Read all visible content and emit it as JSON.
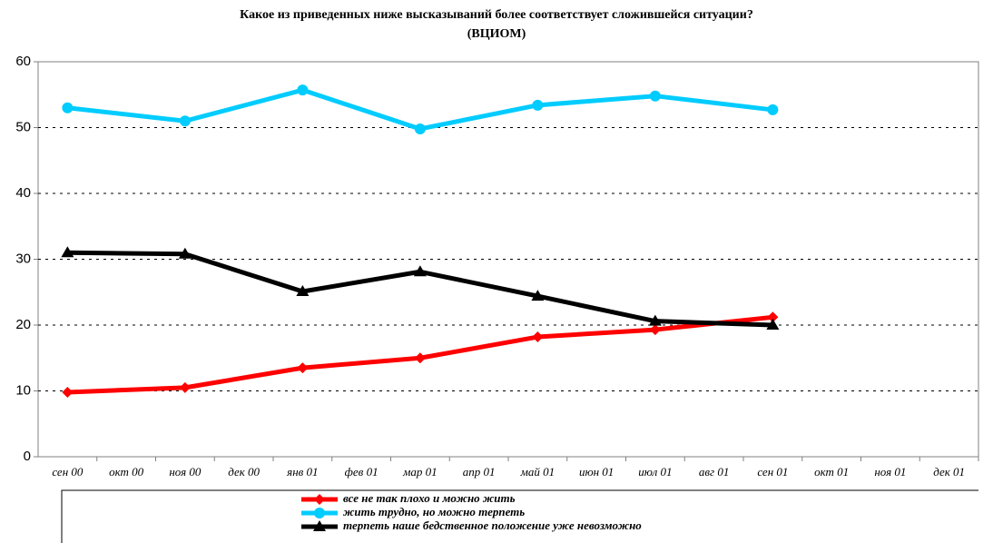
{
  "chart_data": {
    "type": "line",
    "title": "Какое из приведенных ниже высказываний более соответствует сложившейся ситуации?",
    "subtitle": "(ВЦИОМ)",
    "categories": [
      "сен 00",
      "окт 00",
      "ноя 00",
      "дек 00",
      "янв 01",
      "фев 01",
      "мар 01",
      "апр 01",
      "май 01",
      "июн 01",
      "июл 01",
      "авг 01",
      "сен 01",
      "окт 01",
      "ноя 01",
      "дек 01"
    ],
    "series": [
      {
        "name": "все не так плохо и можно жить",
        "color": "#ff0000",
        "marker": "diamond",
        "values": [
          9.8,
          null,
          10.5,
          null,
          13.5,
          null,
          15.0,
          null,
          18.2,
          null,
          19.3,
          null,
          21.2,
          null,
          null,
          null
        ]
      },
      {
        "name": "жить трудно, но можно терпеть",
        "color": "#00ccff",
        "marker": "circle",
        "values": [
          53.0,
          null,
          51.0,
          null,
          55.7,
          null,
          49.8,
          null,
          53.4,
          null,
          54.8,
          null,
          52.7,
          null,
          null,
          null
        ]
      },
      {
        "name": "терпеть наше бедственное положение уже невозможно",
        "color": "#000000",
        "marker": "triangle",
        "values": [
          31.0,
          null,
          30.8,
          null,
          25.1,
          null,
          28.1,
          null,
          24.4,
          null,
          20.6,
          null,
          20.0,
          null,
          null,
          null
        ]
      }
    ],
    "connect_gaps": true,
    "ylim": [
      0,
      60
    ],
    "yticks": [
      0,
      10,
      20,
      30,
      40,
      50,
      60
    ],
    "grid": true,
    "legend": "bottom"
  }
}
